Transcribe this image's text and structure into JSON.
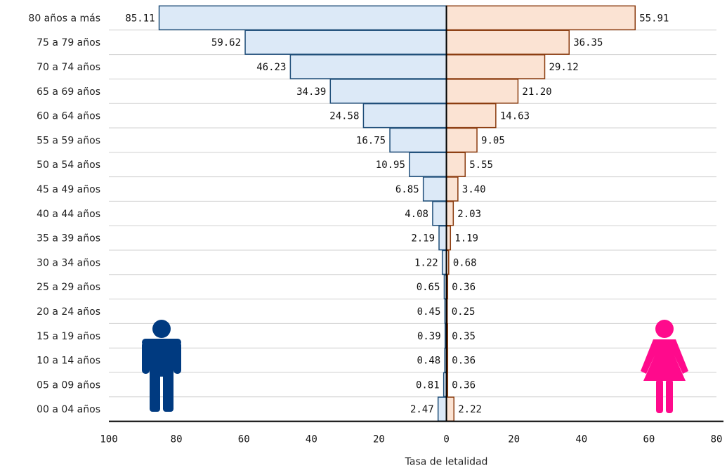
{
  "chart_data": {
    "type": "bar",
    "orientation": "horizontal-population-pyramid",
    "categories": [
      "80 años a más",
      "75 a 79 años",
      "70 a 74 años",
      "65 a 69 años",
      "60 a 64 años",
      "55 a 59 años",
      "50 a 54 años",
      "45 a 49 años",
      "40 a 44 años",
      "35 a 39 años",
      "30 a 34 años",
      "25 a 29 años",
      "20 a 24 años",
      "15 a 19 años",
      "10 a 14 años",
      "05 a 09 años",
      "00 a 04 años"
    ],
    "series": [
      {
        "values": [
          85.11,
          59.62,
          46.23,
          34.39,
          24.58,
          16.75,
          10.95,
          6.85,
          4.08,
          2.19,
          1.22,
          0.65,
          0.45,
          0.39,
          0.48,
          0.81,
          2.47
        ],
        "labels": [
          "85.11",
          "59.62",
          "46.23",
          "34.39",
          "24.58",
          "16.75",
          "10.95",
          "6.85",
          "4.08",
          "2.19",
          "1.22",
          "0.65",
          "0.45",
          "0.39",
          "0.48",
          "0.81",
          "2.47"
        ],
        "fill": "#dce9f7",
        "stroke": "#1f4e79",
        "icon": "male-figure-icon",
        "icon_color": "#003a80"
      },
      {
        "values": [
          55.91,
          36.35,
          29.12,
          21.2,
          14.63,
          9.05,
          5.55,
          3.4,
          2.03,
          1.19,
          0.68,
          0.36,
          0.25,
          0.35,
          0.36,
          0.36,
          2.22
        ],
        "labels": [
          "55.91",
          "36.35",
          "29.12",
          "21.20",
          "14.63",
          "9.05",
          "5.55",
          "3.40",
          "2.03",
          "1.19",
          "0.68",
          "0.36",
          "0.25",
          "0.35",
          "0.36",
          "0.36",
          "2.22"
        ],
        "fill": "#fbe3d3",
        "stroke": "#8a3b0e",
        "icon": "female-figure-icon",
        "icon_color": "#ff0a8c"
      }
    ],
    "xlabel": "Tasa de letalidad",
    "xlim": [
      -100,
      80
    ],
    "xticks": [
      -100,
      -80,
      -60,
      -40,
      -20,
      0,
      20,
      40,
      60,
      80
    ],
    "xtick_labels": [
      "100",
      "80",
      "60",
      "40",
      "20",
      "0",
      "20",
      "40",
      "60",
      "80"
    ],
    "grid": "horizontal",
    "grid_color": "#d0d0d0",
    "axis_color": "#000000"
  }
}
